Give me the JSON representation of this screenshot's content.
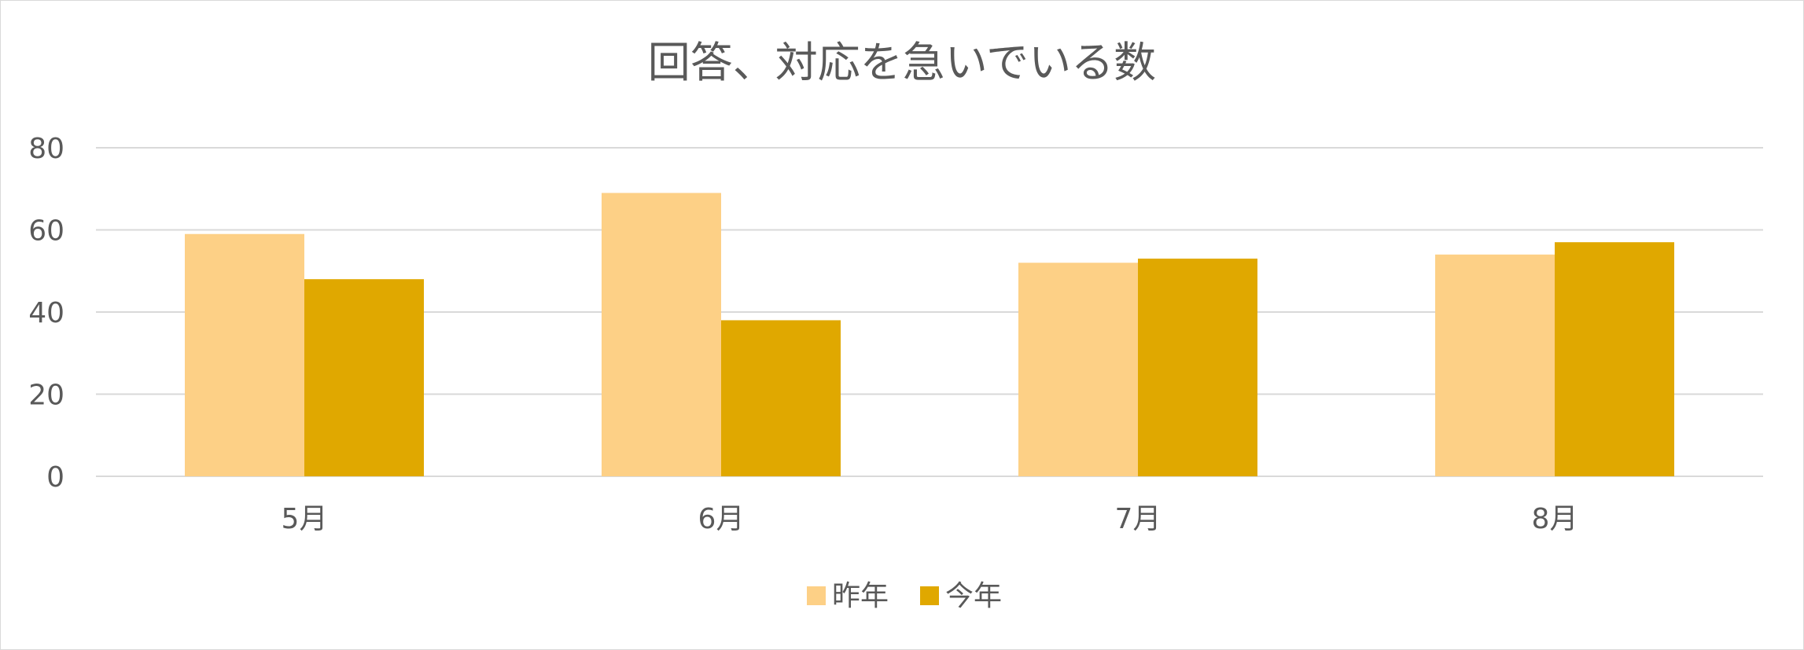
{
  "chart_data": {
    "type": "bar",
    "title": "回答、対応を急いでいる数",
    "categories": [
      "5月",
      "6月",
      "7月",
      "8月"
    ],
    "series": [
      {
        "name": "昨年",
        "values": [
          59,
          69,
          52,
          54
        ],
        "color": "#FDD086"
      },
      {
        "name": "今年",
        "values": [
          48,
          38,
          53,
          57
        ],
        "color": "#E0A800"
      }
    ],
    "ylim": [
      0,
      80
    ],
    "yticks": [
      0,
      20,
      40,
      60,
      80
    ],
    "grid": true,
    "legend_position": "bottom"
  }
}
